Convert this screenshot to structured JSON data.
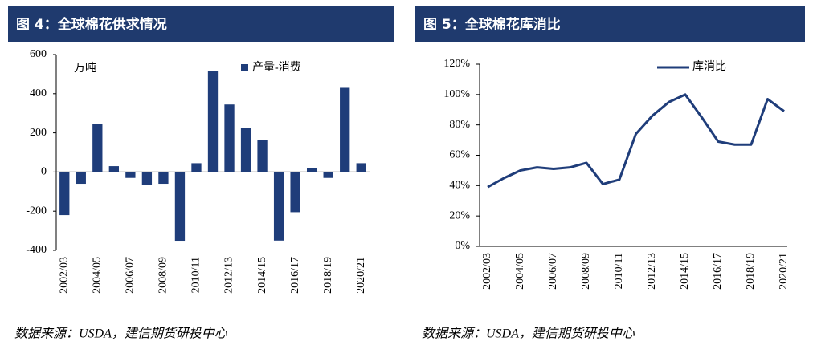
{
  "chart_data": [
    {
      "type": "bar",
      "title": "图 4：全球棉花供求情况",
      "source": "数据来源：USDA，建信期货研投中心",
      "unit": "万吨",
      "categories": [
        "2002/03",
        null,
        "2004/05",
        null,
        "2006/07",
        null,
        "2008/09",
        null,
        "2010/11",
        null,
        "2012/13",
        null,
        "2014/15",
        null,
        "2016/17",
        null,
        "2018/19",
        null,
        "2020/21"
      ],
      "series": [
        {
          "name": "产量-消费",
          "color": "#1f3d7a",
          "values": [
            -220,
            -60,
            245,
            30,
            -30,
            -65,
            -60,
            -355,
            45,
            515,
            345,
            225,
            165,
            -350,
            -205,
            20,
            -30,
            430,
            45
          ]
        }
      ],
      "ylim": [
        -400,
        600
      ],
      "yticks": [
        -400,
        -200,
        0,
        200,
        400,
        600
      ],
      "grid": false,
      "legend": "top-right"
    },
    {
      "type": "line",
      "title": "图 5：全球棉花库消比",
      "source": "数据来源：USDA，建信期货研投中心",
      "categories": [
        "2002/03",
        null,
        "2004/05",
        null,
        "2006/07",
        null,
        "2008/09",
        null,
        "2010/11",
        null,
        "2012/13",
        null,
        "2014/15",
        null,
        "2016/17",
        null,
        "2018/19",
        null,
        "2020/21"
      ],
      "series": [
        {
          "name": "库消比",
          "color": "#1f3d7a",
          "values": [
            39,
            45,
            50,
            52,
            51,
            52,
            55,
            41,
            44,
            74,
            86,
            95,
            100,
            85,
            69,
            67,
            67,
            97,
            89
          ]
        }
      ],
      "ylim": [
        0,
        120
      ],
      "yticks": [
        {
          "value": 0,
          "label": "0%"
        },
        {
          "value": 20,
          "label": "20%"
        },
        {
          "value": 40,
          "label": "40%"
        },
        {
          "value": 60,
          "label": "60%"
        },
        {
          "value": 80,
          "label": "80%"
        },
        {
          "value": 100,
          "label": "100%"
        },
        {
          "value": 120,
          "label": "120%"
        }
      ],
      "grid": false,
      "legend": "top-center"
    }
  ]
}
